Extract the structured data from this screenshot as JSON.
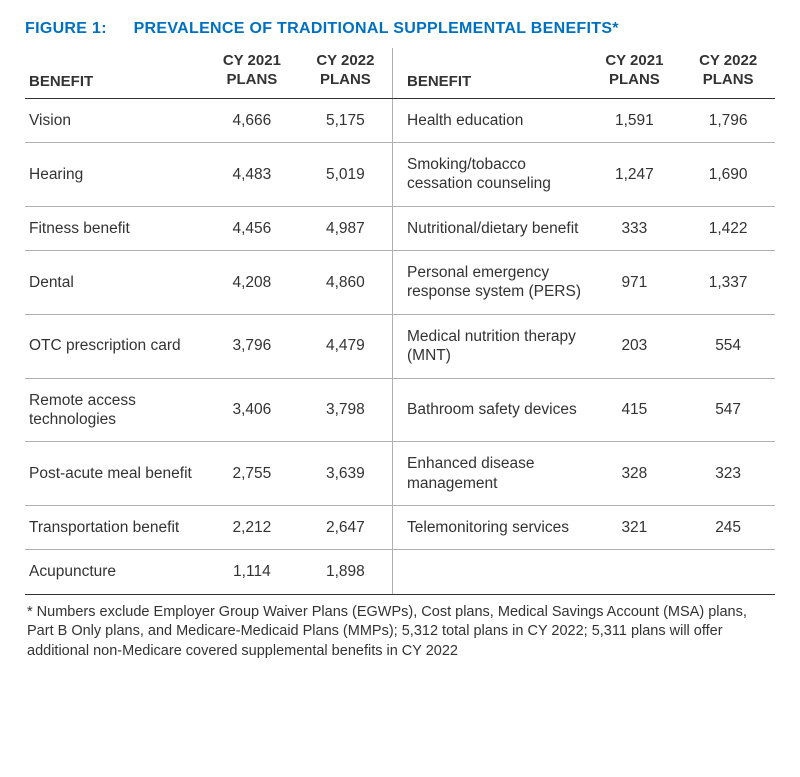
{
  "figure": {
    "label": "FIGURE 1:",
    "title": "PREVALENCE OF TRADITIONAL SUPPLEMENTAL BENEFITS*",
    "title_color": "#0070c0"
  },
  "headers": {
    "benefit": "BENEFIT",
    "cy2021_line1": "CY 2021",
    "cy2021_line2": "PLANS",
    "cy2022_line1": "CY 2022",
    "cy2022_line2": "PLANS"
  },
  "rows_left": [
    {
      "benefit": "Vision",
      "cy2021": "4,666",
      "cy2022": "5,175"
    },
    {
      "benefit": "Hearing",
      "cy2021": "4,483",
      "cy2022": "5,019"
    },
    {
      "benefit": "Fitness benefit",
      "cy2021": "4,456",
      "cy2022": "4,987"
    },
    {
      "benefit": "Dental",
      "cy2021": "4,208",
      "cy2022": "4,860"
    },
    {
      "benefit": "OTC prescription card",
      "cy2021": "3,796",
      "cy2022": "4,479"
    },
    {
      "benefit": "Remote access technologies",
      "cy2021": "3,406",
      "cy2022": "3,798"
    },
    {
      "benefit": "Post-acute meal benefit",
      "cy2021": "2,755",
      "cy2022": "3,639"
    },
    {
      "benefit": "Transportation benefit",
      "cy2021": "2,212",
      "cy2022": "2,647"
    },
    {
      "benefit": "Acupuncture",
      "cy2021": "1,114",
      "cy2022": "1,898"
    }
  ],
  "rows_right": [
    {
      "benefit": "Health education",
      "cy2021": "1,591",
      "cy2022": "1,796"
    },
    {
      "benefit": "Smoking/tobacco cessation counseling",
      "cy2021": "1,247",
      "cy2022": "1,690"
    },
    {
      "benefit": "Nutritional/dietary benefit",
      "cy2021": "333",
      "cy2022": "1,422"
    },
    {
      "benefit": "Personal emergency response system (PERS)",
      "cy2021": "971",
      "cy2022": "1,337"
    },
    {
      "benefit": "Medical nutrition therapy (MNT)",
      "cy2021": "203",
      "cy2022": "554"
    },
    {
      "benefit": "Bathroom safety devices",
      "cy2021": "415",
      "cy2022": "547"
    },
    {
      "benefit": "Enhanced disease management",
      "cy2021": "328",
      "cy2022": "323"
    },
    {
      "benefit": "Telemonitoring services",
      "cy2021": "321",
      "cy2022": "245"
    },
    {
      "benefit": "",
      "cy2021": "",
      "cy2022": ""
    }
  ],
  "footnote": "* Numbers exclude Employer Group Waiver Plans (EGWPs), Cost plans, Medical Savings Account (MSA) plans, Part B Only plans, and Medicare-Medicaid Plans (MMPs); 5,312 total plans in CY 2022; 5,311 plans will offer additional non-Medicare covered supplemental benefits in CY 2022",
  "colors": {
    "text": "#333333",
    "border_strong": "#333333",
    "border_light": "#b0b0b0",
    "background": "#ffffff"
  }
}
